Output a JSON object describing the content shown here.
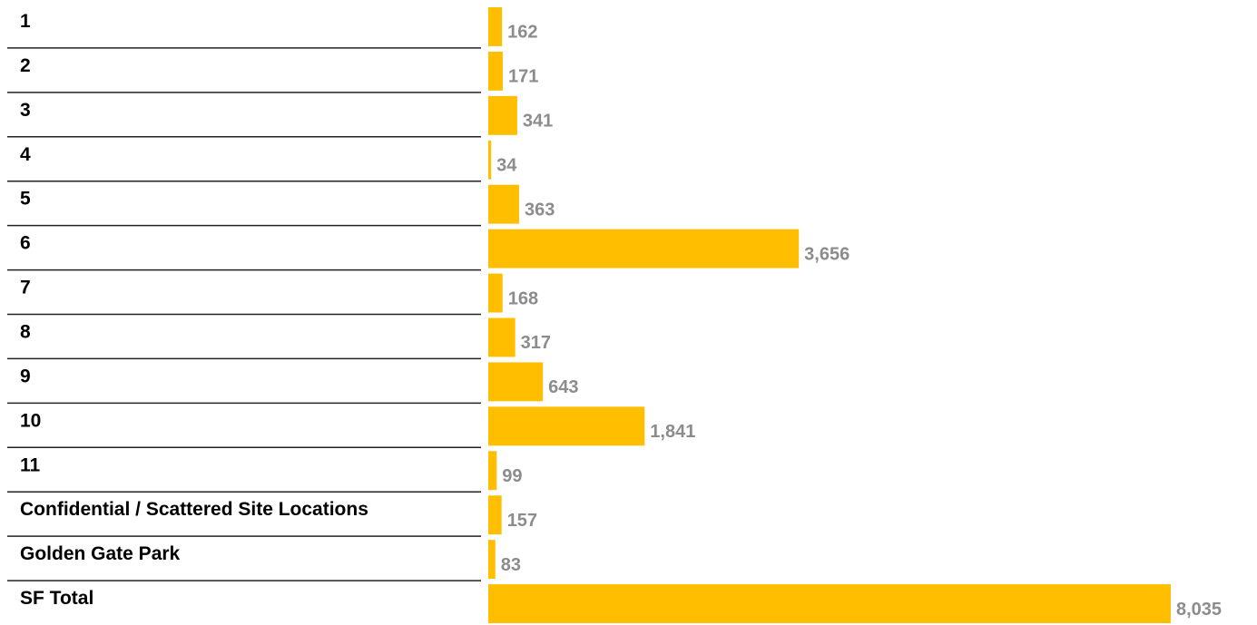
{
  "chart_data": {
    "type": "bar",
    "orientation": "horizontal",
    "categories": [
      "1",
      "2",
      "3",
      "4",
      "5",
      "6",
      "7",
      "8",
      "9",
      "10",
      "11",
      "Confidential / Scattered Site Locations",
      "Golden Gate Park",
      "SF Total"
    ],
    "values": [
      162,
      171,
      341,
      34,
      363,
      3656,
      168,
      317,
      643,
      1841,
      99,
      157,
      83,
      8035
    ],
    "value_labels": [
      "162",
      "171",
      "341",
      "34",
      "363",
      "3,656",
      "168",
      "317",
      "643",
      "1,841",
      "99",
      "157",
      "83",
      "8,035"
    ],
    "color": "#ffbf00"
  }
}
